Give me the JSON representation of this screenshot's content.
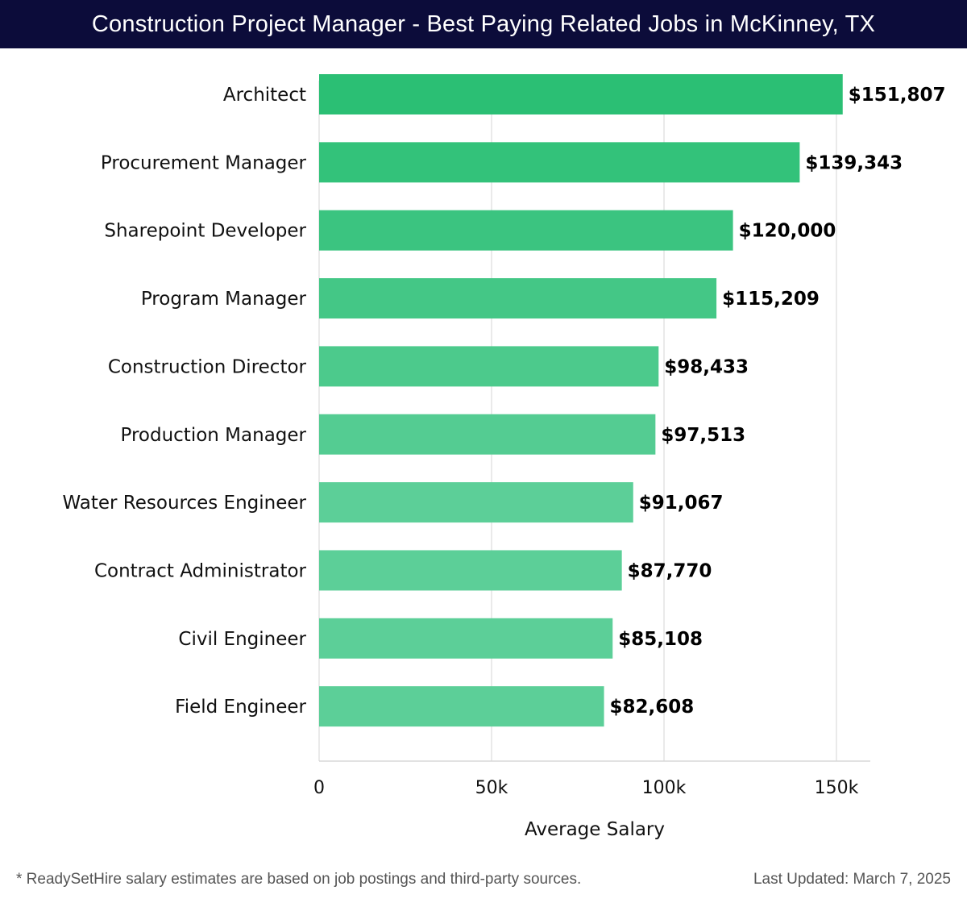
{
  "header": {
    "title": "Construction Project Manager - Best Paying Related Jobs in McKinney, TX"
  },
  "chart_data": {
    "type": "bar",
    "orientation": "horizontal",
    "title": "Construction Project Manager - Best Paying Related Jobs in McKinney, TX",
    "categories": [
      "Architect",
      "Procurement Manager",
      "Sharepoint Developer",
      "Program Manager",
      "Construction Director",
      "Production Manager",
      "Water Resources Engineer",
      "Contract Administrator",
      "Civil Engineer",
      "Field Engineer"
    ],
    "values": [
      151807,
      139343,
      120000,
      115209,
      98433,
      97513,
      91067,
      87770,
      85108,
      82608
    ],
    "value_labels": [
      "$151,807",
      "$139,343",
      "$120,000",
      "$115,209",
      "$98,433",
      "$97,513",
      "$91,067",
      "$87,770",
      "$85,108",
      "$82,608"
    ],
    "xlabel": "Average Salary",
    "ylabel": "",
    "xlim": [
      0,
      160000
    ],
    "xticks": [
      0,
      50000,
      100000,
      150000
    ],
    "xtick_labels": [
      "0",
      "50k",
      "100k",
      "150k"
    ],
    "grid": true,
    "colors": {
      "bar_top": "#2bbf74",
      "bar_bottom": "#5ccf98"
    }
  },
  "footer": {
    "note": "* ReadySetHire salary estimates are based on job postings and third-party sources.",
    "updated": "Last Updated: March 7, 2025"
  }
}
